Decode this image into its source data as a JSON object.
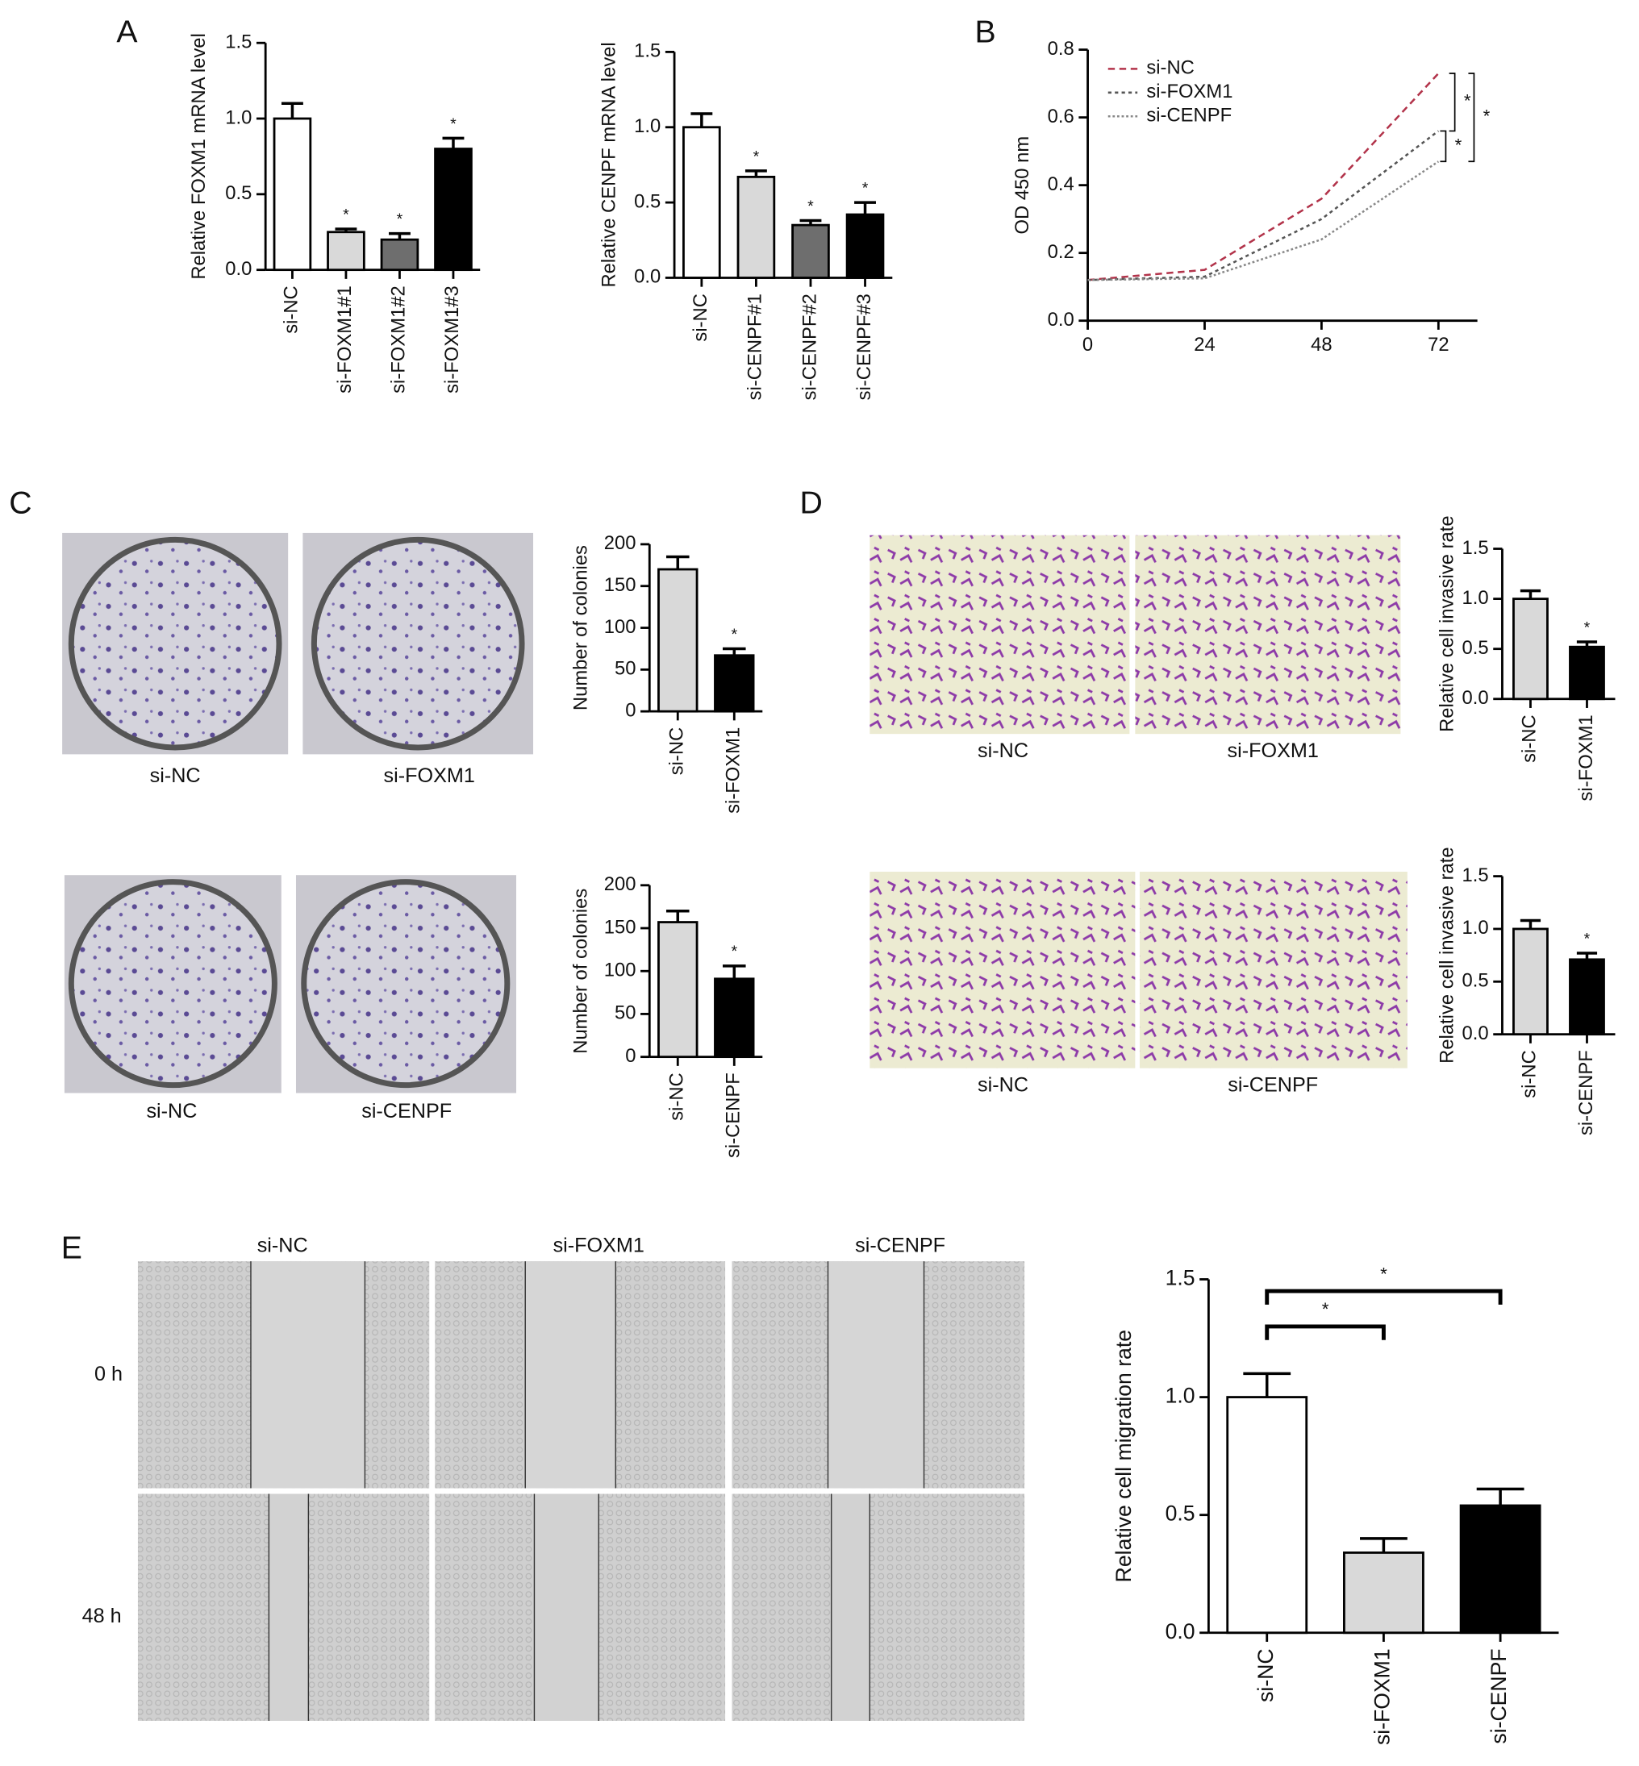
{
  "figure": {
    "panel_labels": [
      "A",
      "B",
      "C",
      "D",
      "E"
    ],
    "colony_labels": [
      [
        "si-NC",
        "si-FOXM1"
      ],
      [
        "si-NC",
        "si-CENPF"
      ]
    ],
    "invasion_labels": [
      [
        "si-NC",
        "si-FOXM1"
      ],
      [
        "si-NC",
        "si-CENPF"
      ]
    ],
    "wound_columns": [
      "si-NC",
      "si-FOXM1",
      "si-CENPF"
    ],
    "wound_rows": [
      "0 h",
      "48 h"
    ]
  },
  "chart_data": [
    {
      "type": "bar",
      "y_label": "Relative FOXM1 mRNA level",
      "categories": [
        "si-NC",
        "si-FOXM1#1",
        "si-FOXM1#2",
        "si-FOXM1#3"
      ],
      "values": [
        1.0,
        0.25,
        0.2,
        0.8
      ],
      "errors": [
        0.1,
        0.02,
        0.04,
        0.07
      ],
      "colors": [
        "#ffffff",
        "#d9d9d9",
        "#6e6e6e",
        "#000000"
      ],
      "significance": [
        "*",
        "*",
        "*"
      ],
      "ylim": [
        0,
        1.5
      ],
      "yticks": [
        {
          "value": 0,
          "label": "0.0"
        },
        {
          "value": 0.5,
          "label": "0.5"
        },
        {
          "value": 1,
          "label": "1.0"
        },
        {
          "value": 1.5,
          "label": "1.5"
        }
      ]
    },
    {
      "type": "bar",
      "y_label": "Relative CENPF mRNA level",
      "categories": [
        "si-NC",
        "si-CENPF#1",
        "si-CENPF#2",
        "si-CENPF#3"
      ],
      "values": [
        1.0,
        0.67,
        0.35,
        0.42
      ],
      "errors": [
        0.09,
        0.04,
        0.03,
        0.08
      ],
      "colors": [
        "#ffffff",
        "#d9d9d9",
        "#6e6e6e",
        "#000000"
      ],
      "significance": [
        "*",
        "*",
        "*"
      ],
      "ylim": [
        0,
        1.5
      ],
      "yticks": [
        {
          "value": 0,
          "label": "0.0"
        },
        {
          "value": 0.5,
          "label": "0.5"
        },
        {
          "value": 1,
          "label": "1.0"
        },
        {
          "value": 1.5,
          "label": "1.5"
        }
      ]
    },
    {
      "type": "line",
      "y_label": "OD 450 nm",
      "legend": "upper-left",
      "x": [
        0,
        24,
        48,
        72
      ],
      "series": [
        {
          "name": "si-NC",
          "color": "#b2334a",
          "dash": "6 4",
          "values": [
            0.12,
            0.15,
            0.36,
            0.73
          ]
        },
        {
          "name": "si-FOXM1",
          "color": "#555555",
          "dash": "3 3",
          "values": [
            0.12,
            0.13,
            0.3,
            0.56
          ]
        },
        {
          "name": "si-CENPF",
          "color": "#888888",
          "dash": "2 2",
          "values": [
            0.12,
            0.125,
            0.24,
            0.47
          ]
        }
      ],
      "significance": [
        "*",
        "*",
        "*"
      ],
      "xlim": [
        0,
        80
      ],
      "xticks": [
        0,
        24,
        48,
        72
      ],
      "ylim": [
        0,
        0.8
      ],
      "yticks": [
        {
          "value": 0,
          "label": "0.0"
        },
        {
          "value": 0.2,
          "label": "0.2"
        },
        {
          "value": 0.4,
          "label": "0.4"
        },
        {
          "value": 0.6,
          "label": "0.6"
        },
        {
          "value": 0.8,
          "label": "0.8"
        }
      ]
    },
    {
      "type": "bar",
      "y_label": "Number of colonies",
      "categories": [
        "si-NC",
        "si-FOXM1"
      ],
      "values": [
        170,
        67
      ],
      "errors": [
        15,
        8
      ],
      "colors": [
        "#d9d9d9",
        "#000000"
      ],
      "significance": [
        "*"
      ],
      "ylim": [
        0,
        200
      ],
      "yticks": [
        0,
        50,
        100,
        150,
        200
      ]
    },
    {
      "type": "bar",
      "y_label": "Number of colonies",
      "categories": [
        "si-NC",
        "si-CENPF"
      ],
      "values": [
        157,
        91
      ],
      "errors": [
        13,
        15
      ],
      "colors": [
        "#d9d9d9",
        "#000000"
      ],
      "significance": [
        "*"
      ],
      "ylim": [
        0,
        200
      ],
      "yticks": [
        0,
        50,
        100,
        150,
        200
      ]
    },
    {
      "type": "bar",
      "y_label": "Relative cell invasive rate",
      "categories": [
        "si-NC",
        "si-FOXM1"
      ],
      "values": [
        1.0,
        0.52
      ],
      "errors": [
        0.08,
        0.05
      ],
      "colors": [
        "#d9d9d9",
        "#000000"
      ],
      "significance": [
        "*"
      ],
      "ylim": [
        0,
        1.5
      ],
      "yticks": [
        {
          "value": 0,
          "label": "0.0"
        },
        {
          "value": 0.5,
          "label": "0.5"
        },
        {
          "value": 1,
          "label": "1.0"
        },
        {
          "value": 1.5,
          "label": "1.5"
        }
      ]
    },
    {
      "type": "bar",
      "y_label": "Relative cell invasive rate",
      "categories": [
        "si-NC",
        "si-CENPF"
      ],
      "values": [
        1.0,
        0.71
      ],
      "errors": [
        0.08,
        0.06
      ],
      "colors": [
        "#d9d9d9",
        "#000000"
      ],
      "significance": [
        "*"
      ],
      "ylim": [
        0,
        1.5
      ],
      "yticks": [
        {
          "value": 0,
          "label": "0.0"
        },
        {
          "value": 0.5,
          "label": "0.5"
        },
        {
          "value": 1,
          "label": "1.0"
        },
        {
          "value": 1.5,
          "label": "1.5"
        }
      ]
    },
    {
      "type": "bar",
      "y_label": "Relative cell migration rate",
      "categories": [
        "si-NC",
        "si-FOXM1",
        "si-CENPF"
      ],
      "values": [
        1.0,
        0.34,
        0.54
      ],
      "errors": [
        0.1,
        0.06,
        0.07
      ],
      "colors": [
        "#ffffff",
        "#d9d9d9",
        "#000000"
      ],
      "bracket_significance": [
        "*",
        "*"
      ],
      "ylim": [
        0,
        1.5
      ],
      "yticks": [
        {
          "value": 0,
          "label": "0.0"
        },
        {
          "value": 0.5,
          "label": "0.5"
        },
        {
          "value": 1,
          "label": "1.0"
        },
        {
          "value": 1.5,
          "label": "1.5"
        }
      ]
    }
  ]
}
